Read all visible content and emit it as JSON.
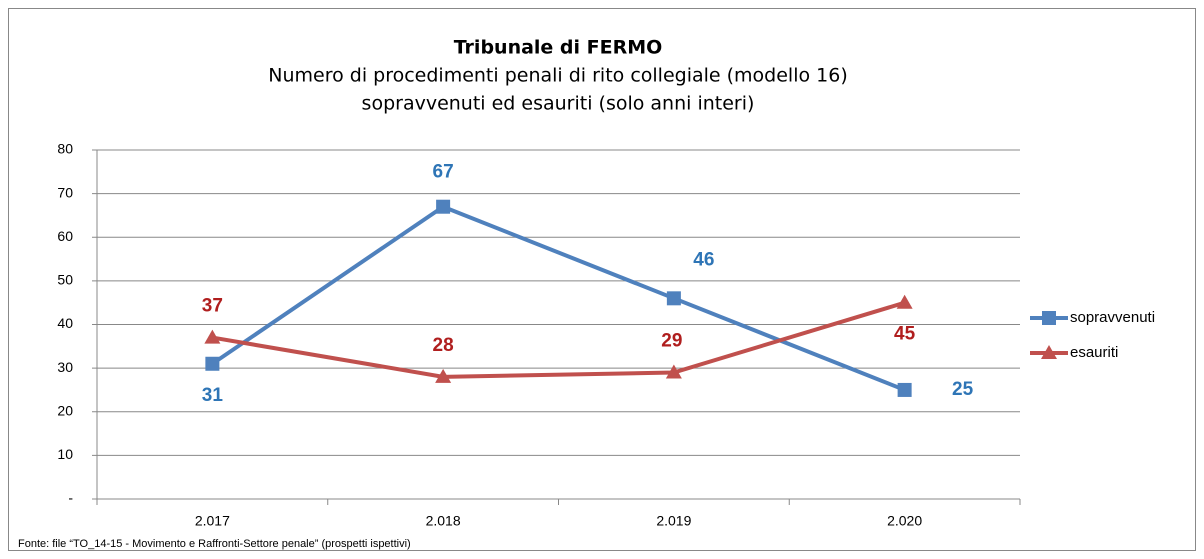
{
  "chart_data": {
    "type": "line",
    "title": "Tribunale di FERMO",
    "subtitle": [
      "Numero di procedimenti penali di rito collegiale (modello 16)",
      "sopravvenuti ed esauriti (solo anni interi)"
    ],
    "source": "Fonte: file “TO_14-15 - Movimento e Raffronti-Settore penale” (prospetti ispettivi)",
    "categories": [
      "2.017",
      "2.018",
      "2.019",
      "2.020"
    ],
    "series": [
      {
        "name": "sopravvenuti",
        "color": "#4f81bd",
        "label_color": "#2e75b6",
        "marker": "square",
        "values": [
          31,
          67,
          46,
          25
        ]
      },
      {
        "name": "esauriti",
        "color": "#c0504d",
        "label_color": "#b01e1e",
        "marker": "triangle",
        "values": [
          37,
          28,
          29,
          45
        ]
      }
    ],
    "ylim": [
      0,
      80
    ],
    "yticks": [
      {
        "value": 0,
        "label": "-"
      },
      10,
      20,
      30,
      40,
      50,
      60,
      70,
      80
    ],
    "grid": true,
    "legend": "right"
  }
}
